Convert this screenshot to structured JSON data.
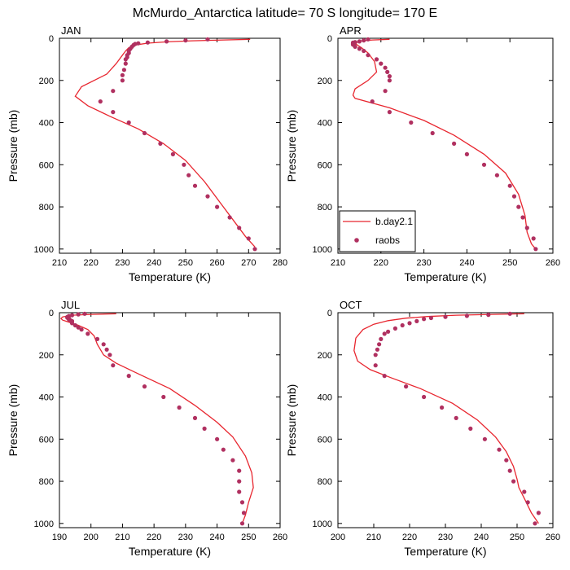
{
  "figure": {
    "title": "McMurdo_Antarctica  latitude= 70 S longitude= 170 E"
  },
  "legend": {
    "items": [
      {
        "name": "b.day2.1",
        "kind": "line",
        "color": "#e8262f"
      },
      {
        "name": "raobs",
        "kind": "marker",
        "color": "#b03060"
      }
    ]
  },
  "chart_data": [
    {
      "type": "line",
      "title": "JAN",
      "xlabel": "Temperature (K)",
      "ylabel": "Pressure (mb)",
      "xlim": [
        210,
        280
      ],
      "xticks": [
        210,
        220,
        230,
        240,
        250,
        260,
        270,
        280
      ],
      "ylim": [
        0,
        1020
      ],
      "yticks": [
        0,
        200,
        400,
        600,
        800,
        1000
      ],
      "y_inverted": true,
      "series": [
        {
          "name": "b.day2.1",
          "kind": "line",
          "color": "#e8262f",
          "points": [
            [
              270.5,
              5
            ],
            [
              262,
              8
            ],
            [
              252,
              12
            ],
            [
              244,
              17
            ],
            [
              238,
              23
            ],
            [
              234,
              32
            ],
            [
              232,
              45
            ],
            [
              231,
              60
            ],
            [
              230,
              80
            ],
            [
              228,
              120
            ],
            [
              225,
              170
            ],
            [
              217,
              230
            ],
            [
              215,
              275
            ],
            [
              219,
              320
            ],
            [
              226,
              370
            ],
            [
              235,
              430
            ],
            [
              243,
              500
            ],
            [
              250,
              580
            ],
            [
              256,
              680
            ],
            [
              261,
              780
            ],
            [
              266,
              880
            ],
            [
              269,
              940
            ],
            [
              272,
              990
            ]
          ]
        },
        {
          "name": "raobs",
          "kind": "marker",
          "color": "#b03060",
          "points": [
            [
              257,
              5
            ],
            [
              250,
              10
            ],
            [
              244,
              15
            ],
            [
              238,
              20
            ],
            [
              235,
              24
            ],
            [
              234,
              27
            ],
            [
              233.5,
              32
            ],
            [
              233,
              40
            ],
            [
              232.5,
              50
            ],
            [
              232,
              60
            ],
            [
              232,
              70
            ],
            [
              231.5,
              80
            ],
            [
              231.5,
              90
            ],
            [
              231,
              100
            ],
            [
              231,
              120
            ],
            [
              230.5,
              150
            ],
            [
              230,
              175
            ],
            [
              230,
              200
            ],
            [
              227,
              250
            ],
            [
              223,
              300
            ],
            [
              227,
              350
            ],
            [
              232,
              400
            ],
            [
              237,
              450
            ],
            [
              242,
              500
            ],
            [
              246,
              550
            ],
            [
              249.5,
              600
            ],
            [
              251,
              650
            ],
            [
              253,
              700
            ],
            [
              257,
              750
            ],
            [
              260,
              800
            ],
            [
              264,
              850
            ],
            [
              267,
              900
            ],
            [
              270,
              950
            ],
            [
              272,
              1000
            ]
          ]
        }
      ]
    },
    {
      "type": "line",
      "title": "APR",
      "xlabel": "Temperature (K)",
      "ylabel": "Pressure (mb)",
      "xlim": [
        210,
        260
      ],
      "xticks": [
        210,
        220,
        230,
        240,
        250,
        260
      ],
      "ylim": [
        0,
        1020
      ],
      "yticks": [
        0,
        200,
        400,
        600,
        800,
        1000
      ],
      "y_inverted": true,
      "series": [
        {
          "name": "b.day2.1",
          "kind": "line",
          "color": "#e8262f",
          "points": [
            [
              222,
              5
            ],
            [
              218,
              8
            ],
            [
              215.5,
              12
            ],
            [
              214.5,
              18
            ],
            [
              214.2,
              25
            ],
            [
              214.5,
              32
            ],
            [
              215.5,
              45
            ],
            [
              217,
              70
            ],
            [
              218.5,
              110
            ],
            [
              219,
              160
            ],
            [
              217,
              200
            ],
            [
              214,
              240
            ],
            [
              213.5,
              270
            ],
            [
              214,
              285
            ],
            [
              222,
              330
            ],
            [
              230,
              390
            ],
            [
              237,
              460
            ],
            [
              244,
              550
            ],
            [
              249,
              640
            ],
            [
              252,
              740
            ],
            [
              253.5,
              840
            ],
            [
              254,
              920
            ],
            [
              255,
              975
            ],
            [
              256,
              1000
            ]
          ]
        },
        {
          "name": "raobs",
          "kind": "marker",
          "color": "#b03060",
          "points": [
            [
              217,
              5
            ],
            [
              216,
              10
            ],
            [
              215,
              15
            ],
            [
              214,
              18
            ],
            [
              213.5,
              21
            ],
            [
              213.5,
              24
            ],
            [
              213.5,
              27
            ],
            [
              213.5,
              30
            ],
            [
              213.8,
              33
            ],
            [
              214,
              40
            ],
            [
              215,
              50
            ],
            [
              216,
              60
            ],
            [
              217,
              80
            ],
            [
              219,
              100
            ],
            [
              220,
              120
            ],
            [
              221,
              140
            ],
            [
              221.5,
              160
            ],
            [
              222,
              180
            ],
            [
              222,
              200
            ],
            [
              221,
              250
            ],
            [
              218,
              300
            ],
            [
              222,
              350
            ],
            [
              227,
              400
            ],
            [
              232,
              450
            ],
            [
              237,
              500
            ],
            [
              240,
              550
            ],
            [
              244,
              600
            ],
            [
              247,
              650
            ],
            [
              250,
              700
            ],
            [
              251,
              750
            ],
            [
              252,
              800
            ],
            [
              253,
              850
            ],
            [
              254,
              900
            ],
            [
              255.5,
              950
            ],
            [
              256,
              1000
            ]
          ]
        }
      ]
    },
    {
      "type": "line",
      "title": "JUL",
      "xlabel": "Temperature (K)",
      "ylabel": "Pressure (mb)",
      "xlim": [
        190,
        260
      ],
      "xticks": [
        190,
        200,
        210,
        220,
        230,
        240,
        250,
        260
      ],
      "ylim": [
        0,
        1020
      ],
      "yticks": [
        0,
        200,
        400,
        600,
        800,
        1000
      ],
      "y_inverted": true,
      "series": [
        {
          "name": "b.day2.1",
          "kind": "line",
          "color": "#e8262f",
          "points": [
            [
              208,
              5
            ],
            [
              200,
              8
            ],
            [
              194,
              12
            ],
            [
              191,
              20
            ],
            [
              190.5,
              28
            ],
            [
              191,
              35
            ],
            [
              193,
              45
            ],
            [
              196,
              60
            ],
            [
              199,
              80
            ],
            [
              201,
              110
            ],
            [
              202,
              150
            ],
            [
              204,
              200
            ],
            [
              208,
              240
            ],
            [
              215,
              290
            ],
            [
              225,
              360
            ],
            [
              233,
              440
            ],
            [
              240,
              520
            ],
            [
              245,
              590
            ],
            [
              249,
              680
            ],
            [
              251,
              760
            ],
            [
              251.5,
              830
            ],
            [
              250,
              900
            ],
            [
              249,
              960
            ],
            [
              248,
              1000
            ]
          ]
        },
        {
          "name": "raobs",
          "kind": "marker",
          "color": "#b03060",
          "points": [
            [
              198,
              5
            ],
            [
              196,
              8
            ],
            [
              194,
              12
            ],
            [
              193,
              16
            ],
            [
              192.5,
              20
            ],
            [
              192.5,
              24
            ],
            [
              193,
              28
            ],
            [
              193,
              32
            ],
            [
              193.5,
              36
            ],
            [
              194,
              40
            ],
            [
              194,
              50
            ],
            [
              195,
              60
            ],
            [
              196,
              70
            ],
            [
              197,
              80
            ],
            [
              199,
              100
            ],
            [
              202,
              125
            ],
            [
              204,
              150
            ],
            [
              205,
              175
            ],
            [
              206,
              200
            ],
            [
              207,
              250
            ],
            [
              212,
              300
            ],
            [
              217,
              350
            ],
            [
              223,
              400
            ],
            [
              228,
              450
            ],
            [
              233,
              500
            ],
            [
              236,
              550
            ],
            [
              240,
              600
            ],
            [
              242,
              650
            ],
            [
              245,
              700
            ],
            [
              247,
              750
            ],
            [
              247,
              800
            ],
            [
              247,
              850
            ],
            [
              248,
              900
            ],
            [
              248.5,
              950
            ],
            [
              248,
              1000
            ]
          ]
        }
      ]
    },
    {
      "type": "line",
      "title": "OCT",
      "xlabel": "Temperature (K)",
      "ylabel": "Pressure (mb)",
      "xlim": [
        200,
        260
      ],
      "xticks": [
        200,
        210,
        220,
        230,
        240,
        250,
        260
      ],
      "ylim": [
        0,
        1020
      ],
      "yticks": [
        0,
        200,
        400,
        600,
        800,
        1000
      ],
      "y_inverted": true,
      "series": [
        {
          "name": "b.day2.1",
          "kind": "line",
          "color": "#e8262f",
          "points": [
            [
              252,
              5
            ],
            [
              243,
              8
            ],
            [
              233,
              12
            ],
            [
              225,
              18
            ],
            [
              219,
              26
            ],
            [
              214,
              38
            ],
            [
              210,
              55
            ],
            [
              207,
              80
            ],
            [
              205,
              120
            ],
            [
              204.5,
              180
            ],
            [
              205.5,
              230
            ],
            [
              209,
              270
            ],
            [
              215,
              310
            ],
            [
              223,
              360
            ],
            [
              232,
              430
            ],
            [
              239,
              510
            ],
            [
              244,
              590
            ],
            [
              247,
              660
            ],
            [
              249,
              730
            ],
            [
              250,
              790
            ],
            [
              250.5,
              830
            ],
            [
              252,
              880
            ],
            [
              254,
              950
            ],
            [
              256,
              1000
            ]
          ]
        },
        {
          "name": "raobs",
          "kind": "marker",
          "color": "#b03060",
          "points": [
            [
              248,
              5
            ],
            [
              242,
              10
            ],
            [
              236,
              15
            ],
            [
              230,
              20
            ],
            [
              226,
              25
            ],
            [
              224,
              30
            ],
            [
              222,
              40
            ],
            [
              220,
              50
            ],
            [
              218,
              60
            ],
            [
              216,
              75
            ],
            [
              214,
              90
            ],
            [
              213,
              100
            ],
            [
              212,
              125
            ],
            [
              211.5,
              150
            ],
            [
              211,
              175
            ],
            [
              210.5,
              200
            ],
            [
              210.5,
              250
            ],
            [
              213,
              300
            ],
            [
              219,
              350
            ],
            [
              224,
              400
            ],
            [
              229,
              450
            ],
            [
              233,
              500
            ],
            [
              237,
              550
            ],
            [
              241,
              600
            ],
            [
              245,
              650
            ],
            [
              247,
              700
            ],
            [
              248,
              750
            ],
            [
              249,
              800
            ],
            [
              252,
              850
            ],
            [
              253,
              900
            ],
            [
              256,
              950
            ],
            [
              255,
              1000
            ]
          ]
        }
      ]
    }
  ]
}
